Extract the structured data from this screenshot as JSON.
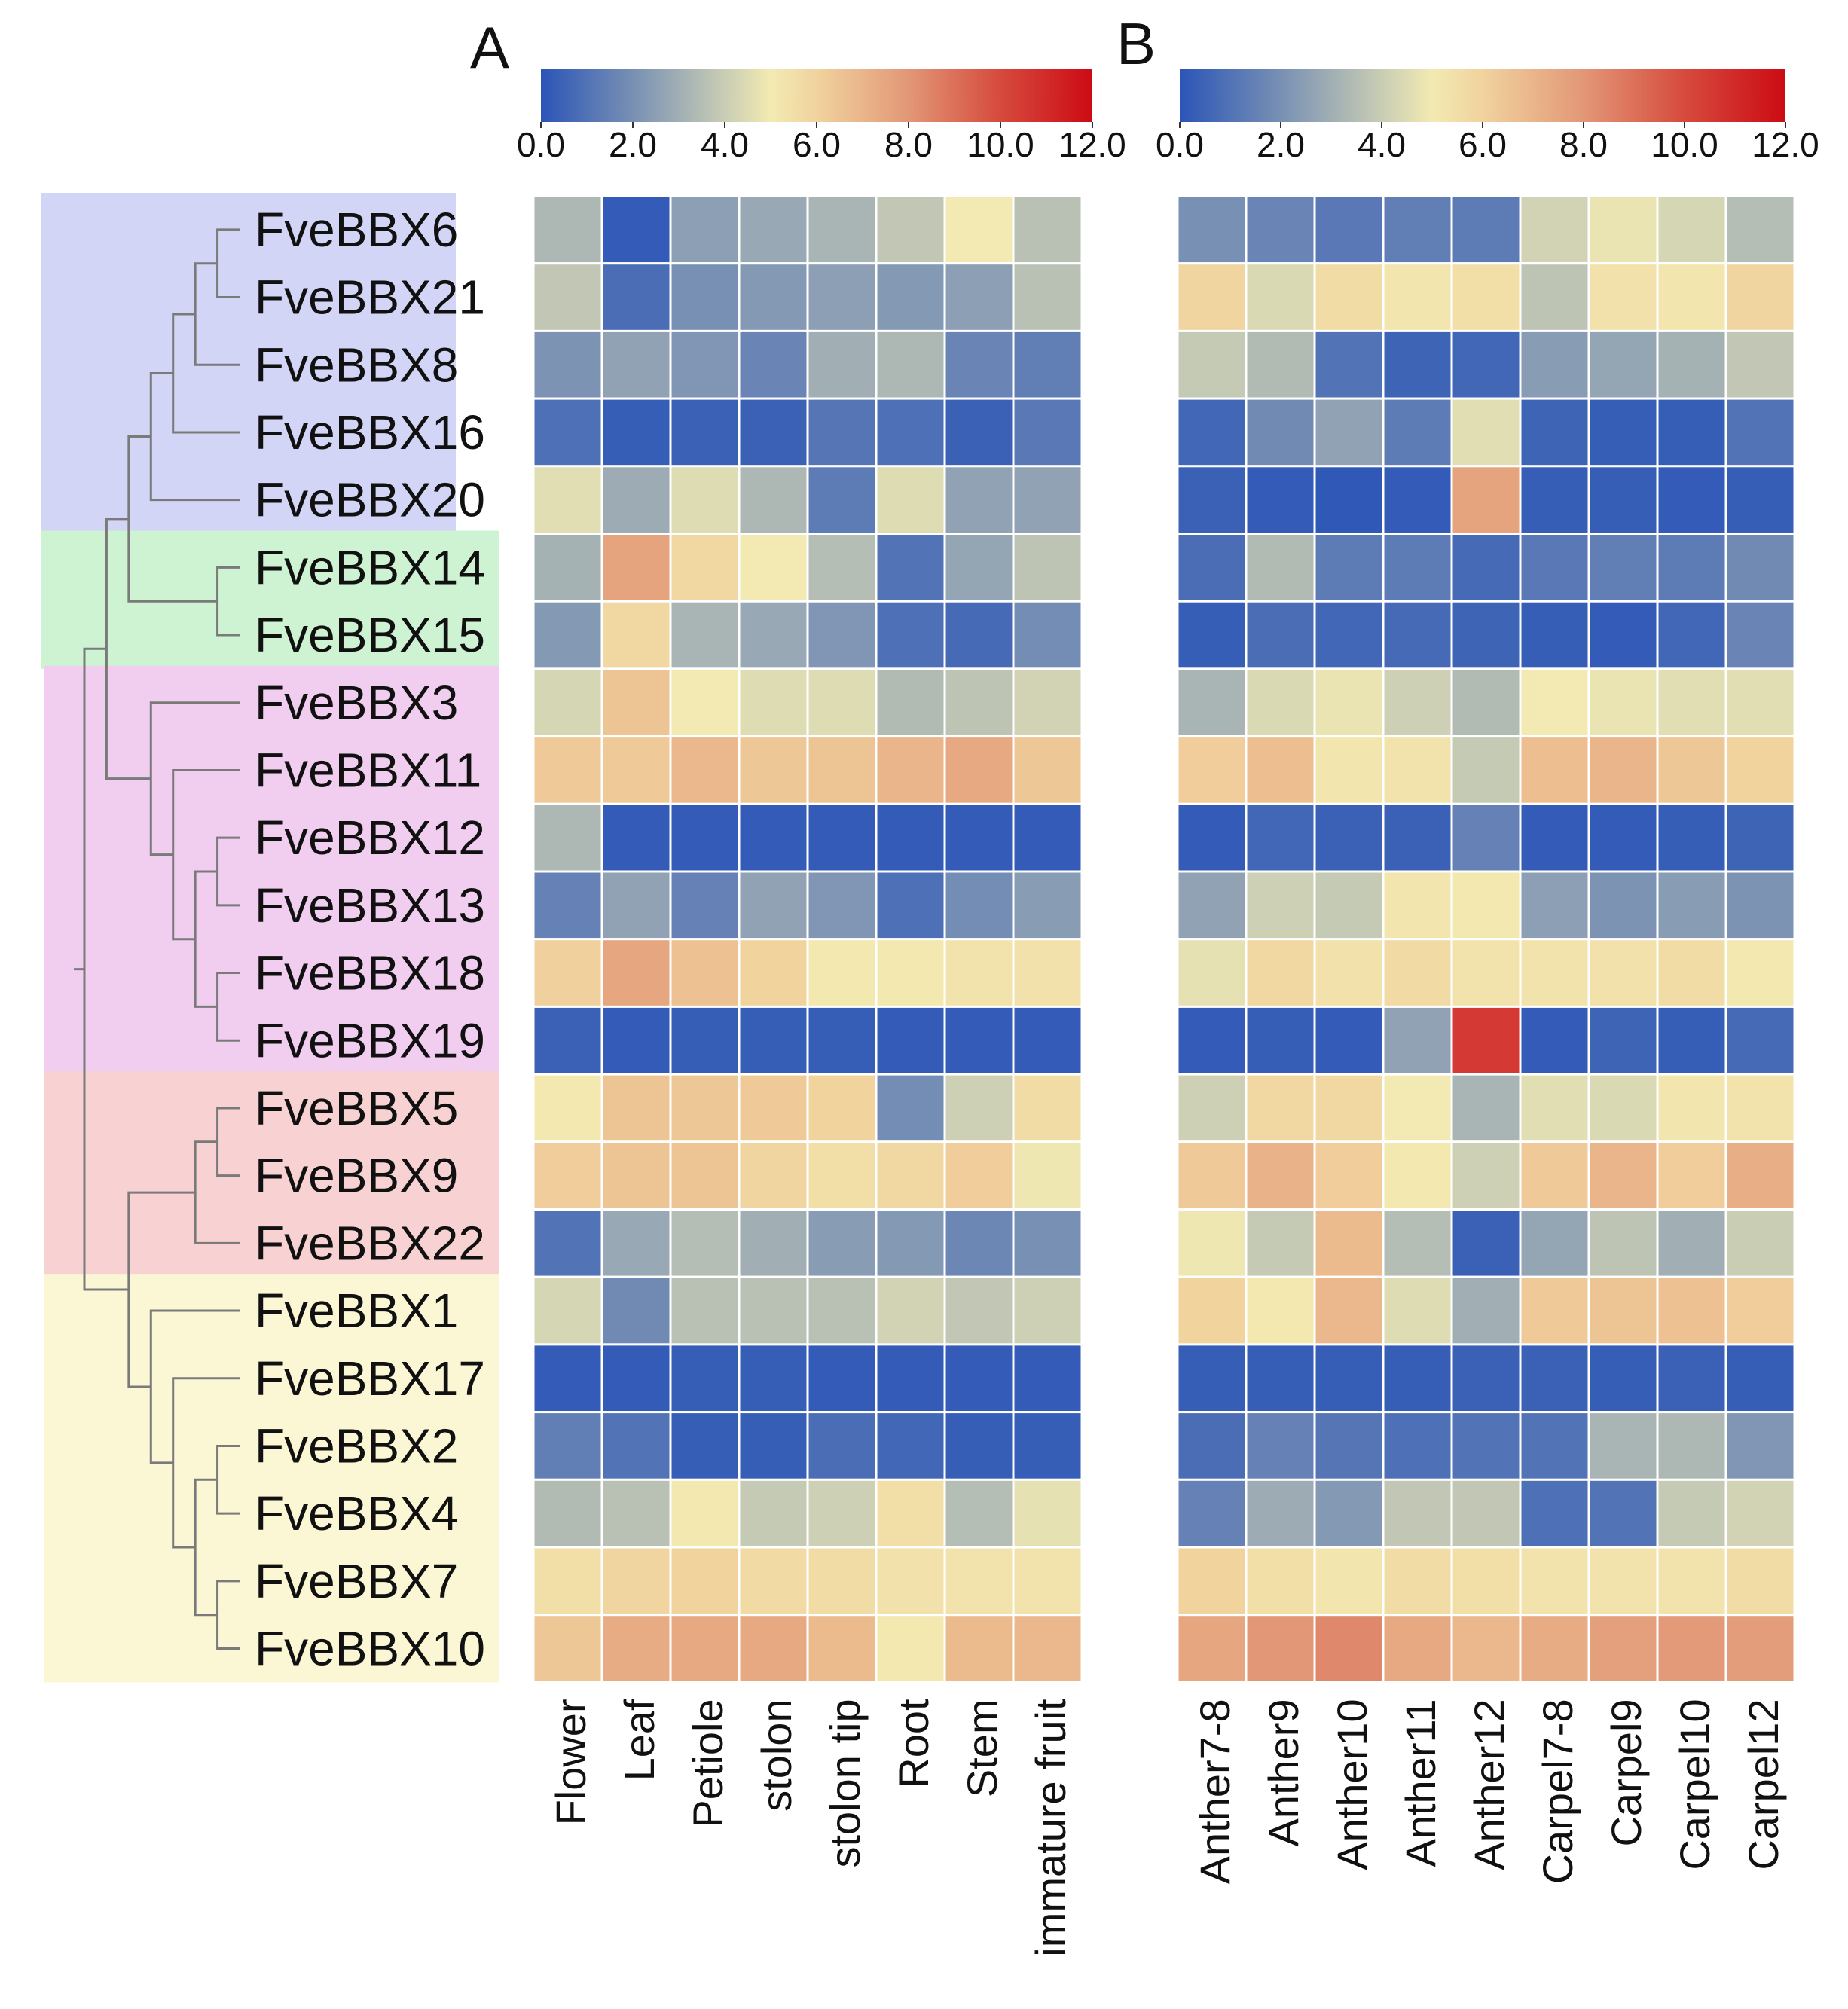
{
  "chart_data": {
    "type": "heatmap",
    "title": "",
    "genes": [
      "FveBBX6",
      "FveBBX21",
      "FveBBX8",
      "FveBBX16",
      "FveBBX20",
      "FveBBX14",
      "FveBBX15",
      "FveBBX3",
      "FveBBX11",
      "FveBBX12",
      "FveBBX13",
      "FveBBX18",
      "FveBBX19",
      "FveBBX5",
      "FveBBX9",
      "FveBBX22",
      "FveBBX1",
      "FveBBX17",
      "FveBBX2",
      "FveBBX4",
      "FveBBX7",
      "FveBBX10"
    ],
    "groups": [
      {
        "genes": [
          "FveBBX6",
          "FveBBX21",
          "FveBBX8",
          "FveBBX16",
          "FveBBX20"
        ],
        "color": "#d3d5f7"
      },
      {
        "genes": [
          "FveBBX14",
          "FveBBX15"
        ],
        "color": "#cdf3d2"
      },
      {
        "genes": [
          "FveBBX3",
          "FveBBX11",
          "FveBBX12",
          "FveBBX13",
          "FveBBX18",
          "FveBBX19"
        ],
        "color": "#f1cdf0"
      },
      {
        "genes": [
          "FveBBX5",
          "FveBBX9",
          "FveBBX22"
        ],
        "color": "#f8d2d2"
      },
      {
        "genes": [
          "FveBBX1",
          "FveBBX17",
          "FveBBX2",
          "FveBBX4",
          "FveBBX7",
          "FveBBX10"
        ],
        "color": "#fbf7d4"
      }
    ],
    "colorscale": {
      "range": [
        0,
        12
      ],
      "ticks": [
        "0.0",
        "2.0",
        "4.0",
        "6.0",
        "8.0",
        "10.0",
        "12.0"
      ],
      "stops": [
        {
          "v": 0,
          "c": "#2b55b7"
        },
        {
          "v": 2,
          "c": "#7890b4"
        },
        {
          "v": 4,
          "c": "#c9cdb4"
        },
        {
          "v": 5,
          "c": "#f2eab2"
        },
        {
          "v": 6,
          "c": "#f1d39e"
        },
        {
          "v": 8,
          "c": "#e29776"
        },
        {
          "v": 10,
          "c": "#d64a3d"
        },
        {
          "v": 12,
          "c": "#cc0b14"
        }
      ]
    },
    "panels": [
      {
        "label": "A",
        "columns": [
          "Flower",
          "Leaf",
          "Petiole",
          "stolon",
          "stolon tip",
          "Root",
          "Stem",
          "immature fruit"
        ],
        "values": [
          [
            3.3,
            0.2,
            2.5,
            2.8,
            3.2,
            3.8,
            5.0,
            3.6
          ],
          [
            3.8,
            0.8,
            2.0,
            2.3,
            2.5,
            2.3,
            2.5,
            3.6
          ],
          [
            2.1,
            2.6,
            2.2,
            1.6,
            3.0,
            3.3,
            1.6,
            1.4
          ],
          [
            0.9,
            0.3,
            0.4,
            0.4,
            1.1,
            0.9,
            0.4,
            1.2
          ],
          [
            4.6,
            2.9,
            4.5,
            3.3,
            1.3,
            4.5,
            2.6,
            2.6
          ],
          [
            3.1,
            7.6,
            5.8,
            5.0,
            3.5,
            1.0,
            2.7,
            3.7
          ],
          [
            2.3,
            5.8,
            3.2,
            2.8,
            2.2,
            0.9,
            0.7,
            1.9
          ],
          [
            4.3,
            6.5,
            5.0,
            4.5,
            4.5,
            3.4,
            3.7,
            4.2
          ],
          [
            6.3,
            6.3,
            6.9,
            6.4,
            6.5,
            7.0,
            7.4,
            6.4
          ],
          [
            3.3,
            0.2,
            0.2,
            0.2,
            0.2,
            0.2,
            0.2,
            0.2
          ],
          [
            1.5,
            2.6,
            1.5,
            2.6,
            2.2,
            0.9,
            1.9,
            2.4
          ],
          [
            6.1,
            7.5,
            6.6,
            6.0,
            5.1,
            5.1,
            5.3,
            5.4
          ],
          [
            0.4,
            0.2,
            0.3,
            0.3,
            0.3,
            0.2,
            0.2,
            0.2
          ],
          [
            5.1,
            6.5,
            6.4,
            6.3,
            6.0,
            1.9,
            4.1,
            5.6
          ],
          [
            6.2,
            6.5,
            6.5,
            5.9,
            5.5,
            5.8,
            6.2,
            4.9
          ],
          [
            1.0,
            2.8,
            3.5,
            3.0,
            2.4,
            2.3,
            1.7,
            2.0
          ],
          [
            4.3,
            1.8,
            3.6,
            3.6,
            3.6,
            4.2,
            3.8,
            4.1
          ],
          [
            0.2,
            0.2,
            0.3,
            0.3,
            0.2,
            0.2,
            0.2,
            0.2
          ],
          [
            1.4,
            1.0,
            0.3,
            0.3,
            0.8,
            0.6,
            0.3,
            0.3
          ],
          [
            3.4,
            3.6,
            5.1,
            3.9,
            4.1,
            5.5,
            3.5,
            4.7
          ],
          [
            5.5,
            5.9,
            6.0,
            5.7,
            5.6,
            5.4,
            5.3,
            5.3
          ],
          [
            6.4,
            7.3,
            7.4,
            7.4,
            6.8,
            5.1,
            6.8,
            6.9
          ]
        ]
      },
      {
        "label": "B",
        "columns": [
          "Anther7-8",
          "Anther9",
          "Anther10",
          "Anther11",
          "Anther12",
          "Carpel7-8",
          "Carpel9",
          "Carpel10",
          "Carpel12"
        ],
        "values": [
          [
            2.0,
            1.6,
            1.2,
            1.4,
            1.3,
            4.2,
            4.8,
            4.3,
            3.5
          ],
          [
            5.9,
            4.4,
            5.6,
            5.2,
            5.5,
            3.7,
            5.4,
            5.2,
            5.9
          ],
          [
            3.9,
            3.4,
            1.0,
            0.5,
            0.6,
            2.4,
            2.7,
            3.1,
            3.8
          ],
          [
            0.6,
            1.8,
            2.6,
            1.3,
            4.6,
            0.5,
            0.3,
            0.3,
            1.0
          ],
          [
            0.4,
            0.2,
            0.1,
            0.2,
            7.6,
            0.3,
            0.3,
            0.2,
            0.3
          ],
          [
            0.8,
            3.4,
            1.3,
            1.3,
            0.7,
            1.2,
            1.4,
            1.3,
            1.8
          ],
          [
            0.3,
            0.8,
            0.6,
            0.7,
            0.5,
            0.3,
            0.2,
            0.6,
            1.6
          ],
          [
            3.2,
            4.4,
            4.8,
            4.1,
            3.4,
            5.0,
            4.8,
            4.6,
            4.6
          ],
          [
            6.2,
            6.7,
            5.2,
            5.3,
            3.9,
            6.7,
            7.0,
            6.4,
            6.0
          ],
          [
            0.2,
            0.6,
            0.4,
            0.4,
            1.5,
            0.2,
            0.2,
            0.3,
            0.5
          ],
          [
            2.6,
            4.1,
            3.9,
            5.2,
            5.1,
            2.5,
            2.1,
            2.4,
            2.1
          ],
          [
            4.7,
            5.8,
            5.4,
            5.7,
            5.3,
            5.3,
            5.4,
            5.6,
            5.1
          ],
          [
            0.2,
            0.3,
            0.2,
            2.6,
            10.5,
            0.2,
            0.5,
            0.3,
            0.7
          ],
          [
            4.1,
            5.8,
            5.8,
            5.0,
            3.2,
            4.6,
            4.4,
            5.2,
            5.3
          ],
          [
            6.3,
            7.1,
            6.2,
            5.1,
            4.1,
            6.3,
            7.0,
            6.2,
            7.2
          ],
          [
            4.9,
            3.9,
            6.8,
            3.5,
            0.4,
            2.7,
            3.7,
            3.0,
            4.0
          ],
          [
            6.0,
            5.1,
            6.9,
            4.5,
            3.0,
            6.3,
            6.5,
            6.6,
            6.2
          ],
          [
            0.3,
            0.3,
            0.3,
            0.3,
            0.4,
            0.4,
            0.3,
            0.4,
            0.3
          ],
          [
            0.8,
            1.5,
            1.1,
            0.9,
            1.0,
            1.0,
            3.2,
            3.3,
            2.2
          ],
          [
            1.5,
            2.9,
            2.3,
            3.8,
            3.8,
            0.9,
            1.0,
            3.9,
            4.2
          ],
          [
            6.0,
            5.5,
            5.2,
            5.6,
            5.5,
            5.3,
            5.3,
            5.3,
            5.6
          ],
          [
            7.5,
            8.0,
            8.4,
            7.4,
            6.9,
            7.3,
            7.7,
            7.9,
            7.8
          ]
        ]
      }
    ]
  }
}
